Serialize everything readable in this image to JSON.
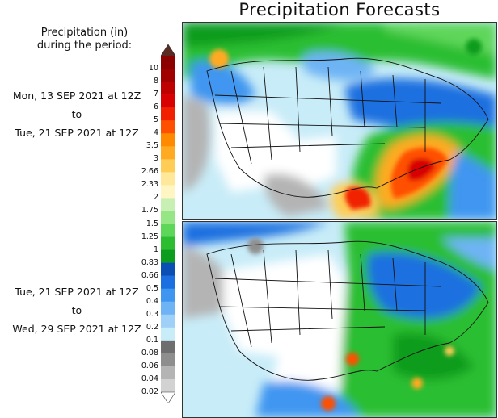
{
  "title": "Precipitation Forecasts",
  "legend": {
    "title_line1": "Precipitation (in)",
    "title_line2": "during the period:",
    "levels": [
      "10",
      "8",
      "7",
      "6",
      "5",
      "4",
      "3.5",
      "3",
      "2.66",
      "2.33",
      "2",
      "1.75",
      "1.5",
      "1.25",
      "1",
      "0.83",
      "0.66",
      "0.5",
      "0.4",
      "0.3",
      "0.2",
      "0.1",
      "0.08",
      "0.06",
      "0.04",
      "0.02"
    ],
    "colors": [
      "#8b0000",
      "#a00000",
      "#be0000",
      "#d80000",
      "#f02000",
      "#ff5000",
      "#ff8a00",
      "#ffaa20",
      "#ffcc55",
      "#ffe89a",
      "#fff6c4",
      "#c8f0b4",
      "#96e686",
      "#5ed65a",
      "#2cbe30",
      "#0c9c1e",
      "#0a4fb4",
      "#1b6fe0",
      "#3f96f0",
      "#6eb4f5",
      "#9fd0f8",
      "#c8ecf8",
      "#6e6e6e",
      "#8e8e8e",
      "#b4b4b4",
      "#d2d2d2"
    ],
    "top_arrow_color": "#5a2a23"
  },
  "period1": {
    "start": "Mon, 13 SEP 2021 at 12Z",
    "sep": "-to-",
    "end": "Tue, 21 SEP 2021 at 12Z"
  },
  "period2": {
    "start": "Tue, 21 SEP 2021 at 12Z",
    "sep": "-to-",
    "end": "Wed, 29 SEP 2021 at 12Z"
  }
}
